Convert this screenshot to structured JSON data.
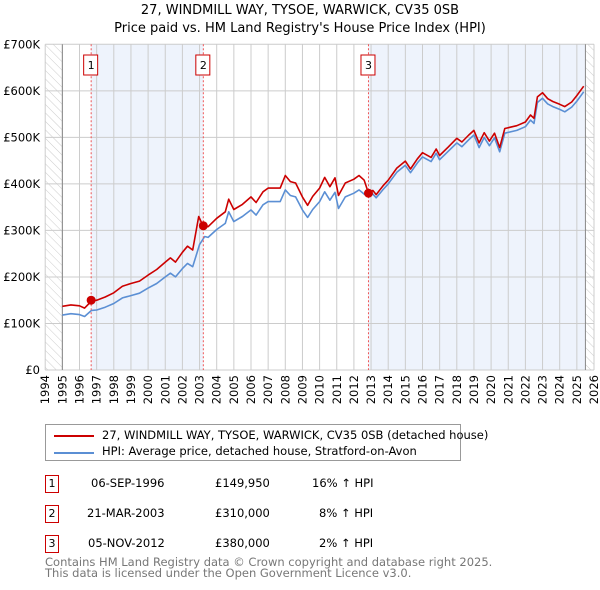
{
  "title": "27, WINDMILL WAY, TYSOE, WARWICK, CV35 0SB",
  "subtitle": "Price paid vs. HM Land Registry's House Price Index (HPI)",
  "chart_data": {
    "type": "line",
    "title": "27, WINDMILL WAY, TYSOE, WARWICK, CV35 0SB",
    "subtitle": "Price paid vs. HM Land Registry's House Price Index (HPI)",
    "xlabel": "",
    "ylabel": "",
    "xlim": [
      1994,
      2026
    ],
    "ylim": [
      0,
      700000
    ],
    "x_ticks": [
      "1994",
      "1995",
      "1996",
      "1997",
      "1998",
      "1999",
      "2000",
      "2001",
      "2002",
      "2003",
      "2004",
      "2005",
      "2006",
      "2007",
      "2008",
      "2009",
      "2010",
      "2011",
      "2012",
      "2013",
      "2014",
      "2015",
      "2016",
      "2017",
      "2018",
      "2019",
      "2020",
      "2021",
      "2022",
      "2023",
      "2024",
      "2025",
      "2026"
    ],
    "y_ticks": [
      {
        "value": 0,
        "label": "£0"
      },
      {
        "value": 100000,
        "label": "£100K"
      },
      {
        "value": 200000,
        "label": "£200K"
      },
      {
        "value": 300000,
        "label": "£300K"
      },
      {
        "value": 400000,
        "label": "£400K"
      },
      {
        "value": 500000,
        "label": "£500K"
      },
      {
        "value": 600000,
        "label": "£600K"
      },
      {
        "value": 700000,
        "label": "£700K"
      }
    ],
    "grid": true,
    "shaded_ranges": [
      [
        1996.68,
        2003.22
      ],
      [
        2012.85,
        2025.5
      ]
    ],
    "hatched_ranges": [
      [
        1994,
        1995
      ],
      [
        2025.5,
        2026
      ]
    ],
    "colors": {
      "property": "#cc0000",
      "hpi": "#5b8fd4",
      "shade": "#eef3fc",
      "marker": "#cc0000"
    },
    "series": [
      {
        "name": "27, WINDMILL WAY, TYSOE, WARWICK, CV35 0SB (detached house)",
        "color": "#cc0000",
        "points": [
          [
            1995.0,
            137
          ],
          [
            1995.5,
            140
          ],
          [
            1996.0,
            138
          ],
          [
            1996.3,
            133
          ],
          [
            1996.7,
            148
          ],
          [
            1997.0,
            150
          ],
          [
            1997.5,
            157
          ],
          [
            1998.0,
            166
          ],
          [
            1998.5,
            180
          ],
          [
            1999.0,
            186
          ],
          [
            1999.5,
            191
          ],
          [
            2000.0,
            204
          ],
          [
            2000.5,
            216
          ],
          [
            2001.0,
            232
          ],
          [
            2001.3,
            241
          ],
          [
            2001.6,
            232
          ],
          [
            2002.0,
            253
          ],
          [
            2002.3,
            266
          ],
          [
            2002.6,
            258
          ],
          [
            2002.95,
            330
          ],
          [
            2003.2,
            310
          ],
          [
            2003.5,
            308
          ],
          [
            2004.0,
            326
          ],
          [
            2004.5,
            340
          ],
          [
            2004.7,
            367
          ],
          [
            2005.0,
            345
          ],
          [
            2005.5,
            356
          ],
          [
            2006.0,
            372
          ],
          [
            2006.3,
            360
          ],
          [
            2006.7,
            383
          ],
          [
            2007.0,
            391
          ],
          [
            2007.7,
            391
          ],
          [
            2008.0,
            418
          ],
          [
            2008.3,
            405
          ],
          [
            2008.6,
            402
          ],
          [
            2009.0,
            372
          ],
          [
            2009.3,
            354
          ],
          [
            2009.6,
            373
          ],
          [
            2010.0,
            391
          ],
          [
            2010.3,
            414
          ],
          [
            2010.6,
            394
          ],
          [
            2010.9,
            413
          ],
          [
            2011.1,
            375
          ],
          [
            2011.5,
            402
          ],
          [
            2012.0,
            410
          ],
          [
            2012.3,
            418
          ],
          [
            2012.6,
            408
          ],
          [
            2012.85,
            380
          ],
          [
            2013.1,
            386
          ],
          [
            2013.3,
            377
          ],
          [
            2013.7,
            396
          ],
          [
            2014.0,
            408
          ],
          [
            2014.5,
            434
          ],
          [
            2015.0,
            449
          ],
          [
            2015.3,
            432
          ],
          [
            2015.7,
            454
          ],
          [
            2016.0,
            467
          ],
          [
            2016.5,
            457
          ],
          [
            2016.8,
            475
          ],
          [
            2017.0,
            461
          ],
          [
            2017.5,
            479
          ],
          [
            2018.0,
            498
          ],
          [
            2018.3,
            490
          ],
          [
            2018.7,
            505
          ],
          [
            2019.0,
            515
          ],
          [
            2019.3,
            488
          ],
          [
            2019.6,
            510
          ],
          [
            2019.9,
            492
          ],
          [
            2020.2,
            509
          ],
          [
            2020.5,
            478
          ],
          [
            2020.8,
            519
          ],
          [
            2021.5,
            525
          ],
          [
            2022.0,
            533
          ],
          [
            2022.3,
            548
          ],
          [
            2022.5,
            541
          ],
          [
            2022.7,
            587
          ],
          [
            2023.0,
            596
          ],
          [
            2023.3,
            583
          ],
          [
            2023.6,
            577
          ],
          [
            2024.0,
            571
          ],
          [
            2024.3,
            566
          ],
          [
            2024.7,
            576
          ],
          [
            2025.0,
            590
          ],
          [
            2025.4,
            610
          ]
        ]
      },
      {
        "name": "HPI: Average price, detached house, Stratford-on-Avon",
        "color": "#5b8fd4",
        "points": [
          [
            1995.0,
            118
          ],
          [
            1995.5,
            121
          ],
          [
            1996.0,
            119
          ],
          [
            1996.3,
            115
          ],
          [
            1996.7,
            128
          ],
          [
            1997.0,
            129
          ],
          [
            1997.5,
            135
          ],
          [
            1998.0,
            143
          ],
          [
            1998.5,
            155
          ],
          [
            1999.0,
            160
          ],
          [
            1999.5,
            165
          ],
          [
            2000.0,
            176
          ],
          [
            2000.5,
            186
          ],
          [
            2001.0,
            200
          ],
          [
            2001.3,
            208
          ],
          [
            2001.6,
            200
          ],
          [
            2002.0,
            218
          ],
          [
            2002.3,
            229
          ],
          [
            2002.6,
            222
          ],
          [
            2003.0,
            270
          ],
          [
            2003.3,
            287
          ],
          [
            2003.5,
            285
          ],
          [
            2004.0,
            302
          ],
          [
            2004.5,
            315
          ],
          [
            2004.7,
            340
          ],
          [
            2005.0,
            319
          ],
          [
            2005.5,
            330
          ],
          [
            2006.0,
            344
          ],
          [
            2006.3,
            333
          ],
          [
            2006.7,
            355
          ],
          [
            2007.0,
            362
          ],
          [
            2007.7,
            362
          ],
          [
            2008.0,
            387
          ],
          [
            2008.3,
            375
          ],
          [
            2008.6,
            372
          ],
          [
            2009.0,
            344
          ],
          [
            2009.3,
            328
          ],
          [
            2009.6,
            345
          ],
          [
            2010.0,
            362
          ],
          [
            2010.3,
            383
          ],
          [
            2010.6,
            365
          ],
          [
            2010.9,
            382
          ],
          [
            2011.1,
            347
          ],
          [
            2011.5,
            372
          ],
          [
            2012.0,
            380
          ],
          [
            2012.3,
            387
          ],
          [
            2012.6,
            378
          ],
          [
            2012.85,
            376
          ],
          [
            2013.1,
            378
          ],
          [
            2013.3,
            370
          ],
          [
            2013.7,
            388
          ],
          [
            2014.0,
            400
          ],
          [
            2014.5,
            425
          ],
          [
            2015.0,
            440
          ],
          [
            2015.3,
            424
          ],
          [
            2015.7,
            445
          ],
          [
            2016.0,
            458
          ],
          [
            2016.5,
            448
          ],
          [
            2016.8,
            466
          ],
          [
            2017.0,
            452
          ],
          [
            2017.5,
            470
          ],
          [
            2018.0,
            488
          ],
          [
            2018.3,
            480
          ],
          [
            2018.7,
            495
          ],
          [
            2019.0,
            505
          ],
          [
            2019.3,
            478
          ],
          [
            2019.6,
            500
          ],
          [
            2019.9,
            482
          ],
          [
            2020.2,
            499
          ],
          [
            2020.5,
            469
          ],
          [
            2020.8,
            509
          ],
          [
            2021.5,
            515
          ],
          [
            2022.0,
            523
          ],
          [
            2022.3,
            537
          ],
          [
            2022.5,
            530
          ],
          [
            2022.7,
            575
          ],
          [
            2023.0,
            584
          ],
          [
            2023.3,
            572
          ],
          [
            2023.6,
            566
          ],
          [
            2024.0,
            560
          ],
          [
            2024.3,
            555
          ],
          [
            2024.7,
            565
          ],
          [
            2025.0,
            578
          ],
          [
            2025.4,
            598
          ]
        ]
      }
    ],
    "y_units": "thousands GBP",
    "sales": [
      {
        "label": "1",
        "x": 1996.68,
        "value": 149950
      },
      {
        "label": "2",
        "x": 2003.22,
        "value": 310000
      },
      {
        "label": "3",
        "x": 2012.85,
        "value": 380000
      }
    ]
  },
  "legend": {
    "items": [
      {
        "label": "27, WINDMILL WAY, TYSOE, WARWICK, CV35 0SB (detached house)"
      },
      {
        "label": "HPI: Average price, detached house, Stratford-on-Avon"
      }
    ]
  },
  "transactions": [
    {
      "num": "1",
      "date": "06-SEP-1996",
      "price": "£149,950",
      "hpi": "16% ↑ HPI"
    },
    {
      "num": "2",
      "date": "21-MAR-2003",
      "price": "£310,000",
      "hpi": "8% ↑ HPI"
    },
    {
      "num": "3",
      "date": "05-NOV-2012",
      "price": "£380,000",
      "hpi": "2% ↑ HPI"
    }
  ],
  "footer": {
    "line1": "Contains HM Land Registry data © Crown copyright and database right 2025.",
    "line2": "This data is licensed under the Open Government Licence v3.0."
  }
}
